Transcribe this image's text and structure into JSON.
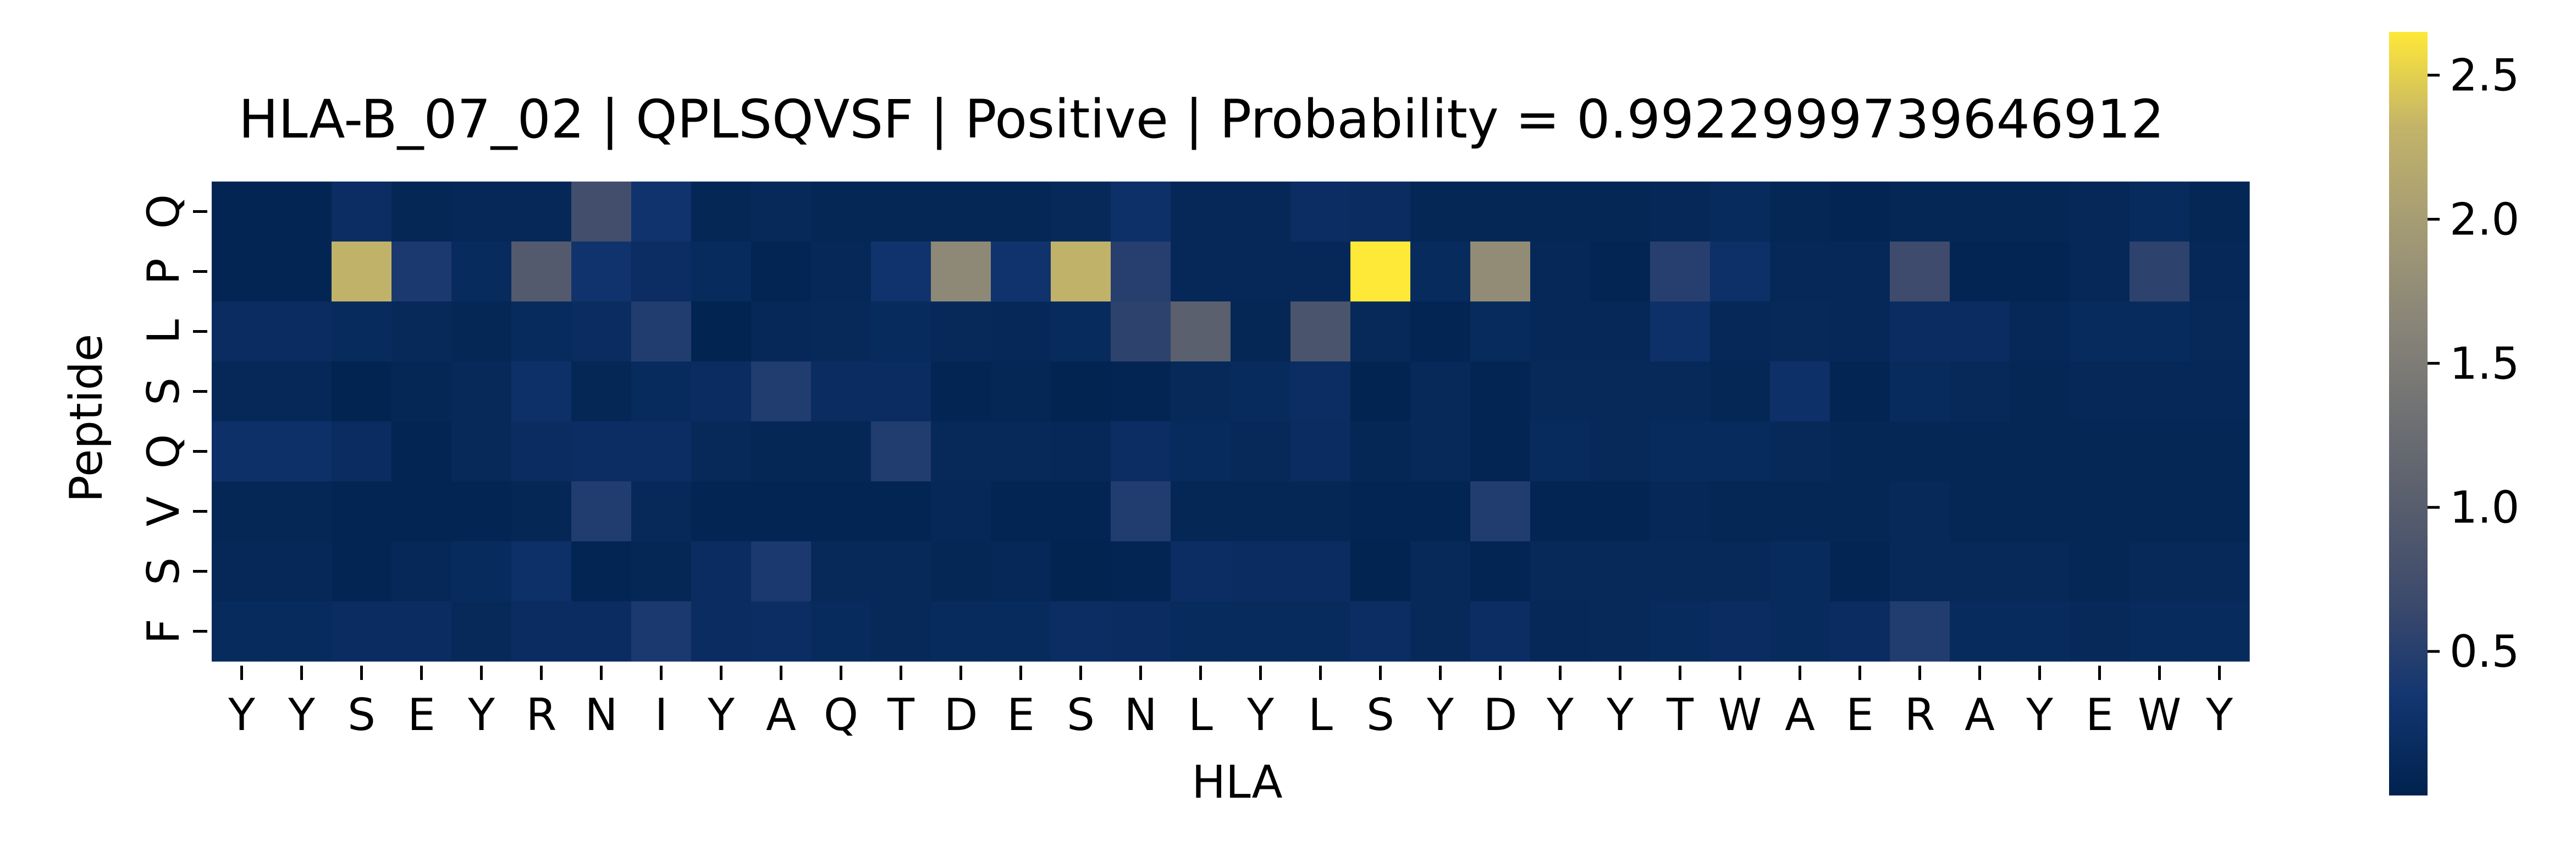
{
  "chart_data": {
    "type": "heatmap",
    "title": "HLA-B_07_02 | QPLSQVSF | Positive | Probability = 0.9922999739646912",
    "xlabel": "HLA",
    "ylabel": "Peptide",
    "x_categories": [
      "Y",
      "Y",
      "S",
      "E",
      "Y",
      "R",
      "N",
      "I",
      "Y",
      "A",
      "Q",
      "T",
      "D",
      "E",
      "S",
      "N",
      "L",
      "Y",
      "L",
      "S",
      "Y",
      "D",
      "Y",
      "Y",
      "T",
      "W",
      "A",
      "E",
      "R",
      "A",
      "Y",
      "E",
      "W",
      "Y"
    ],
    "y_categories": [
      "Q",
      "P",
      "L",
      "S",
      "Q",
      "V",
      "S",
      "F"
    ],
    "colormap": "cividis",
    "colorbar": {
      "range": [
        0.0,
        2.65
      ],
      "ticks": [
        0.5,
        1.0,
        1.5,
        2.0,
        2.5
      ],
      "tick_labels": [
        "0.5",
        "1.0",
        "1.5",
        "2.0",
        "2.5"
      ]
    },
    "values": [
      [
        0.05,
        0.05,
        0.2,
        0.08,
        0.1,
        0.1,
        0.75,
        0.3,
        0.08,
        0.12,
        0.08,
        0.08,
        0.08,
        0.08,
        0.12,
        0.25,
        0.1,
        0.1,
        0.2,
        0.18,
        0.08,
        0.08,
        0.08,
        0.08,
        0.1,
        0.15,
        0.08,
        0.05,
        0.08,
        0.08,
        0.08,
        0.1,
        0.15,
        0.08
      ],
      [
        0.05,
        0.05,
        2.3,
        0.4,
        0.15,
        0.95,
        0.3,
        0.2,
        0.15,
        0.05,
        0.1,
        0.3,
        1.7,
        0.3,
        2.3,
        0.5,
        0.1,
        0.1,
        0.1,
        2.65,
        0.15,
        1.75,
        0.1,
        0.05,
        0.5,
        0.25,
        0.1,
        0.1,
        0.7,
        0.05,
        0.05,
        0.1,
        0.55,
        0.1
      ],
      [
        0.18,
        0.18,
        0.15,
        0.12,
        0.08,
        0.15,
        0.18,
        0.45,
        0.03,
        0.1,
        0.12,
        0.15,
        0.12,
        0.1,
        0.15,
        0.55,
        1.05,
        0.08,
        0.85,
        0.12,
        0.05,
        0.15,
        0.1,
        0.1,
        0.25,
        0.1,
        0.12,
        0.1,
        0.18,
        0.18,
        0.1,
        0.15,
        0.15,
        0.12
      ],
      [
        0.1,
        0.1,
        0.03,
        0.08,
        0.12,
        0.25,
        0.08,
        0.15,
        0.18,
        0.45,
        0.18,
        0.18,
        0.05,
        0.08,
        0.03,
        0.05,
        0.12,
        0.15,
        0.2,
        0.03,
        0.12,
        0.05,
        0.12,
        0.12,
        0.12,
        0.08,
        0.25,
        0.05,
        0.15,
        0.12,
        0.08,
        0.1,
        0.1,
        0.1
      ],
      [
        0.25,
        0.25,
        0.18,
        0.05,
        0.12,
        0.18,
        0.2,
        0.2,
        0.12,
        0.08,
        0.08,
        0.45,
        0.12,
        0.12,
        0.1,
        0.2,
        0.15,
        0.12,
        0.18,
        0.08,
        0.12,
        0.05,
        0.15,
        0.12,
        0.15,
        0.15,
        0.12,
        0.08,
        0.08,
        0.08,
        0.08,
        0.08,
        0.08,
        0.08
      ],
      [
        0.08,
        0.08,
        0.05,
        0.05,
        0.05,
        0.08,
        0.45,
        0.12,
        0.05,
        0.05,
        0.05,
        0.05,
        0.1,
        0.05,
        0.05,
        0.45,
        0.08,
        0.08,
        0.08,
        0.05,
        0.05,
        0.45,
        0.05,
        0.05,
        0.1,
        0.08,
        0.08,
        0.08,
        0.12,
        0.08,
        0.08,
        0.08,
        0.08,
        0.08
      ],
      [
        0.1,
        0.1,
        0.05,
        0.1,
        0.15,
        0.25,
        0.05,
        0.08,
        0.18,
        0.4,
        0.12,
        0.12,
        0.08,
        0.1,
        0.03,
        0.05,
        0.2,
        0.18,
        0.18,
        0.03,
        0.12,
        0.05,
        0.12,
        0.12,
        0.12,
        0.12,
        0.15,
        0.05,
        0.12,
        0.12,
        0.12,
        0.08,
        0.12,
        0.12
      ],
      [
        0.15,
        0.15,
        0.18,
        0.18,
        0.12,
        0.18,
        0.18,
        0.4,
        0.18,
        0.2,
        0.15,
        0.12,
        0.15,
        0.15,
        0.2,
        0.18,
        0.15,
        0.15,
        0.15,
        0.2,
        0.12,
        0.2,
        0.1,
        0.12,
        0.15,
        0.18,
        0.15,
        0.18,
        0.45,
        0.15,
        0.15,
        0.12,
        0.15,
        0.15
      ]
    ]
  }
}
